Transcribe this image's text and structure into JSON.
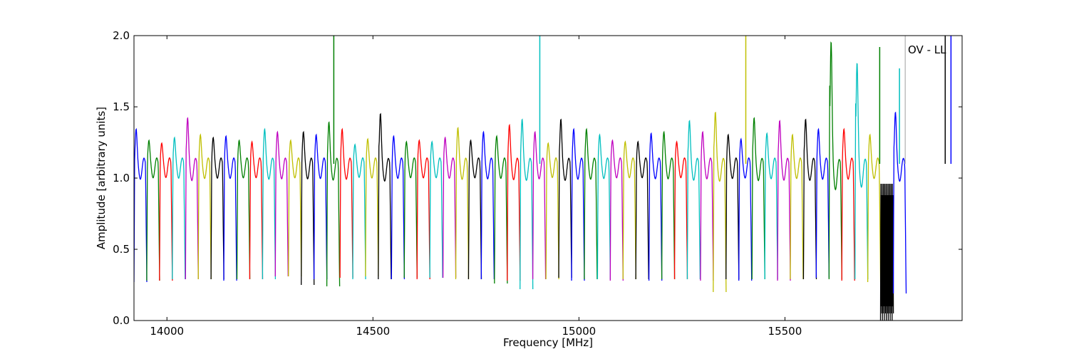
{
  "chart_data": {
    "type": "line",
    "title": "",
    "annotation": "OV - LL",
    "xlabel": "Frequency [MHz]",
    "ylabel": "Amplitude [arbitrary units]",
    "xlim": [
      13920,
      15930
    ],
    "ylim": [
      0.0,
      2.0
    ],
    "x_ticks": [
      14000,
      14500,
      15000,
      15500
    ],
    "x_tick_labels": [
      "14000",
      "14500",
      "15000",
      "15500"
    ],
    "y_ticks": [
      0.0,
      0.5,
      1.0,
      1.5,
      2.0
    ],
    "y_tick_labels": [
      "0.0",
      "0.5",
      "1.0",
      "1.5",
      "2.0"
    ],
    "grid": false,
    "legend": "none",
    "colors": [
      "#0000ff",
      "#008000",
      "#ff0000",
      "#00bfbf",
      "#bf00bf",
      "#bfbf00",
      "#000000"
    ],
    "channel_width_mhz": 31.2,
    "segments": [
      {
        "start": 13920,
        "peak": 1.3,
        "base": 0.27,
        "color": "#0000ff"
      },
      {
        "start": 13951,
        "peak": 1.22,
        "base": 0.28,
        "color": "#008000"
      },
      {
        "start": 13982,
        "peak": 1.2,
        "base": 0.28,
        "color": "#ff0000"
      },
      {
        "start": 14013,
        "peak": 1.24,
        "base": 0.29,
        "color": "#00bfbf"
      },
      {
        "start": 14045,
        "peak": 1.38,
        "base": 0.29,
        "color": "#bf00bf"
      },
      {
        "start": 14076,
        "peak": 1.26,
        "base": 0.29,
        "color": "#bfbf00"
      },
      {
        "start": 14107,
        "peak": 1.24,
        "base": 0.29,
        "color": "#000000"
      },
      {
        "start": 14138,
        "peak": 1.25,
        "base": 0.28,
        "color": "#0000ff"
      },
      {
        "start": 14170,
        "peak": 1.22,
        "base": 0.29,
        "color": "#008000"
      },
      {
        "start": 14201,
        "peak": 1.21,
        "base": 0.29,
        "color": "#ff0000"
      },
      {
        "start": 14232,
        "peak": 1.3,
        "base": 0.29,
        "color": "#00bfbf"
      },
      {
        "start": 14263,
        "peak": 1.28,
        "base": 0.31,
        "color": "#bf00bf"
      },
      {
        "start": 14295,
        "peak": 1.22,
        "base": 0.31,
        "color": "#bfbf00"
      },
      {
        "start": 14326,
        "peak": 1.28,
        "base": 0.25,
        "color": "#000000"
      },
      {
        "start": 14357,
        "peak": 1.26,
        "base": 0.29,
        "color": "#0000ff"
      },
      {
        "start": 14388,
        "peak": 1.35,
        "base": 0.24,
        "color": "#008000"
      },
      {
        "start": 14420,
        "peak": 1.3,
        "base": 0.3,
        "color": "#ff0000"
      },
      {
        "start": 14451,
        "peak": 1.19,
        "base": 0.29,
        "color": "#00bfbf"
      },
      {
        "start": 14482,
        "peak": 1.23,
        "base": 0.31,
        "color": "#bfbf00"
      },
      {
        "start": 14513,
        "peak": 1.41,
        "base": 0.29,
        "color": "#000000"
      },
      {
        "start": 14545,
        "peak": 1.25,
        "base": 0.29,
        "color": "#0000ff"
      },
      {
        "start": 14576,
        "peak": 1.21,
        "base": 0.3,
        "color": "#008000"
      },
      {
        "start": 14607,
        "peak": 1.22,
        "base": 0.29,
        "color": "#ff0000"
      },
      {
        "start": 14638,
        "peak": 1.21,
        "base": 0.3,
        "color": "#00bfbf"
      },
      {
        "start": 14670,
        "peak": 1.24,
        "base": 0.3,
        "color": "#bf00bf"
      },
      {
        "start": 14701,
        "peak": 1.31,
        "base": 0.29,
        "color": "#bfbf00"
      },
      {
        "start": 14732,
        "peak": 1.22,
        "base": 0.29,
        "color": "#000000"
      },
      {
        "start": 14763,
        "peak": 1.28,
        "base": 0.29,
        "color": "#0000ff"
      },
      {
        "start": 14795,
        "peak": 1.25,
        "base": 0.26,
        "color": "#008000"
      },
      {
        "start": 14826,
        "peak": 1.33,
        "base": 0.28,
        "color": "#ff0000"
      },
      {
        "start": 14857,
        "peak": 1.37,
        "base": 0.22,
        "color": "#00bfbf"
      },
      {
        "start": 14888,
        "peak": 1.28,
        "base": 0.29,
        "color": "#bf00bf"
      },
      {
        "start": 14920,
        "peak": 1.2,
        "base": 0.29,
        "color": "#bfbf00"
      },
      {
        "start": 14951,
        "peak": 1.37,
        "base": 0.3,
        "color": "#000000"
      },
      {
        "start": 14982,
        "peak": 1.3,
        "base": 0.28,
        "color": "#0000ff"
      },
      {
        "start": 15013,
        "peak": 1.3,
        "base": 0.29,
        "color": "#008000"
      },
      {
        "start": 15045,
        "peak": 1.26,
        "base": 0.29,
        "color": "#00bfbf"
      },
      {
        "start": 15076,
        "peak": 1.22,
        "base": 0.28,
        "color": "#bf00bf"
      },
      {
        "start": 15107,
        "peak": 1.21,
        "base": 0.29,
        "color": "#bfbf00"
      },
      {
        "start": 15138,
        "peak": 1.21,
        "base": 0.29,
        "color": "#000000"
      },
      {
        "start": 15170,
        "peak": 1.27,
        "base": 0.28,
        "color": "#0000ff"
      },
      {
        "start": 15201,
        "peak": 1.28,
        "base": 0.29,
        "color": "#008000"
      },
      {
        "start": 15232,
        "peak": 1.21,
        "base": 0.29,
        "color": "#ff0000"
      },
      {
        "start": 15263,
        "peak": 1.36,
        "base": 0.29,
        "color": "#00bfbf"
      },
      {
        "start": 15295,
        "peak": 1.28,
        "base": 0.28,
        "color": "#bf00bf"
      },
      {
        "start": 15326,
        "peak": 1.42,
        "base": 0.2,
        "color": "#bfbf00"
      },
      {
        "start": 15357,
        "peak": 1.26,
        "base": 0.29,
        "color": "#000000"
      },
      {
        "start": 15388,
        "peak": 1.23,
        "base": 0.28,
        "color": "#0000ff"
      },
      {
        "start": 15420,
        "peak": 1.38,
        "base": 0.29,
        "color": "#008000"
      },
      {
        "start": 15451,
        "peak": 1.27,
        "base": 0.29,
        "color": "#00bfbf"
      },
      {
        "start": 15482,
        "peak": 1.36,
        "base": 0.28,
        "color": "#bf00bf"
      },
      {
        "start": 15513,
        "peak": 1.26,
        "base": 0.29,
        "color": "#bfbf00"
      },
      {
        "start": 15545,
        "peak": 1.37,
        "base": 0.29,
        "color": "#000000"
      },
      {
        "start": 15576,
        "peak": 1.3,
        "base": 0.3,
        "color": "#0000ff"
      },
      {
        "start": 15607,
        "peak": 1.92,
        "base": 0.29,
        "color": "#008000"
      },
      {
        "start": 15638,
        "peak": 1.3,
        "base": 0.28,
        "color": "#ff0000"
      },
      {
        "start": 15670,
        "peak": 1.77,
        "base": 0.29,
        "color": "#00bfbf"
      },
      {
        "start": 15701,
        "peak": 1.26,
        "base": 0.27,
        "color": "#bfbf00"
      },
      {
        "start": 15732,
        "peak": 2.0,
        "base": 0.0,
        "color": "#000000"
      },
      {
        "start": 15763,
        "peak": 1.42,
        "base": 0.19,
        "color": "#0000ff"
      }
    ],
    "spikes": [
      {
        "x": 14405,
        "y": 2.0,
        "color": "#008000"
      },
      {
        "x": 14905,
        "y": 2.0,
        "color": "#00bfbf"
      },
      {
        "x": 15405,
        "y": 2.0,
        "color": "#bfbf00"
      },
      {
        "x": 15730,
        "y": 1.92,
        "color": "#008000"
      },
      {
        "x": 15778,
        "y": 1.77,
        "color": "#00bfbf"
      },
      {
        "x": 15792,
        "y": 2.0,
        "color": "#bfbfbf"
      },
      {
        "x": 15889,
        "y": 2.0,
        "color": "#000000"
      },
      {
        "x": 15903,
        "y": 2.0,
        "color": "#0000ff"
      }
    ]
  }
}
